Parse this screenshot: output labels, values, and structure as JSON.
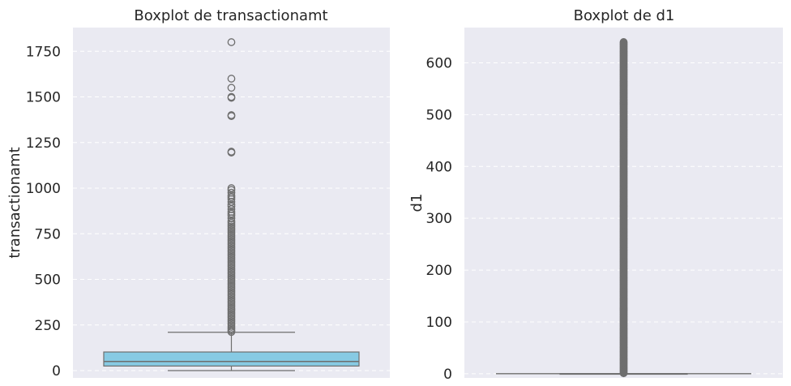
{
  "colors": {
    "plot_background": "#eaeaf2",
    "grid": "#ffffff",
    "box_fill": "#87cae3",
    "line": "#6e6e6e",
    "text": "#262626"
  },
  "chart_data": [
    {
      "type": "boxplot",
      "title": "Boxplot de transactionamt",
      "xlabel": "",
      "ylabel": "transactionamt",
      "ylim": [
        -40,
        1880
      ],
      "yticks": [
        0,
        250,
        500,
        750,
        1000,
        1250,
        1500,
        1750
      ],
      "grid": "horizontal, dashed",
      "box": {
        "whisker_low": 0,
        "q1": 25,
        "median": 50,
        "q3": 102,
        "whisker_high": 210
      },
      "box_color": "#87cae3",
      "outliers": [
        1800,
        1600,
        1550,
        1500,
        1495,
        1400,
        1395,
        1200,
        1195,
        1000,
        990,
        975,
        960,
        950,
        940,
        925,
        910,
        900,
        885,
        870,
        860,
        850,
        835,
        820,
        810,
        800,
        790,
        780,
        770,
        760,
        750,
        740,
        730,
        720,
        710,
        700,
        690,
        680,
        670,
        660,
        650,
        640,
        630,
        620,
        610,
        600,
        590,
        580,
        570,
        560,
        550,
        540,
        530,
        520,
        510,
        500,
        490,
        480,
        470,
        460,
        450,
        440,
        430,
        420,
        410,
        400,
        390,
        380,
        370,
        360,
        350,
        340,
        330,
        320,
        310,
        300,
        290,
        280,
        270,
        260,
        250,
        240,
        230,
        220,
        212
      ]
    },
    {
      "type": "boxplot",
      "title": "Boxplot de d1",
      "xlabel": "",
      "ylabel": "d1",
      "ylim": [
        -8,
        668
      ],
      "yticks": [
        0,
        100,
        200,
        300,
        400,
        500,
        600
      ],
      "grid": "horizontal, dashed",
      "box": {
        "whisker_low": 0,
        "q1": 0,
        "median": 0,
        "q3": 0,
        "whisker_high": 0
      },
      "box_color": "#87cae3",
      "outliers_dense_range": [
        1,
        640
      ]
    }
  ]
}
